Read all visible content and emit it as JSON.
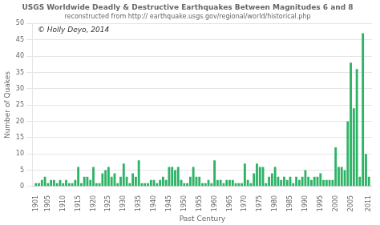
{
  "chart_data": {
    "type": "bar",
    "title": "USGS Worldwide Deadly & Destructive Earthquakes Between Magnitudes 6 and 8",
    "subtitle": "reconstructed from http:// earthquake.usgs.gov/regional/world/historical.php",
    "x_label": "Past Century",
    "y_label": "Number of Quakes",
    "annotation": "© Holly Deyo, 2014",
    "color": "#2db366",
    "xlim": [
      1900,
      2012
    ],
    "xticks": [
      1901,
      1905,
      1910,
      1915,
      1920,
      1925,
      1930,
      1935,
      1940,
      1945,
      1950,
      1955,
      1960,
      1965,
      1970,
      1975,
      1980,
      1985,
      1990,
      1995,
      2000,
      2005,
      2011
    ],
    "ylim": [
      0,
      50
    ],
    "yticks": [
      0,
      5,
      10,
      15,
      20,
      25,
      30,
      35,
      40,
      45,
      50
    ],
    "grid": true,
    "x": [
      1901,
      1902,
      1903,
      1904,
      1905,
      1906,
      1907,
      1908,
      1909,
      1910,
      1911,
      1912,
      1913,
      1914,
      1915,
      1916,
      1917,
      1918,
      1919,
      1920,
      1921,
      1922,
      1923,
      1924,
      1925,
      1926,
      1927,
      1928,
      1929,
      1930,
      1931,
      1932,
      1933,
      1934,
      1935,
      1936,
      1937,
      1938,
      1939,
      1940,
      1941,
      1942,
      1943,
      1944,
      1945,
      1946,
      1947,
      1948,
      1949,
      1950,
      1951,
      1952,
      1953,
      1954,
      1955,
      1956,
      1957,
      1958,
      1959,
      1960,
      1961,
      1962,
      1963,
      1964,
      1965,
      1966,
      1967,
      1968,
      1969,
      1970,
      1971,
      1972,
      1973,
      1974,
      1975,
      1976,
      1977,
      1978,
      1979,
      1980,
      1981,
      1982,
      1983,
      1984,
      1985,
      1986,
      1987,
      1988,
      1989,
      1990,
      1991,
      1992,
      1993,
      1994,
      1995,
      1996,
      1997,
      1998,
      1999,
      2000,
      2001,
      2002,
      2003,
      2004,
      2005,
      2006,
      2007,
      2008,
      2009,
      2010,
      2011
    ],
    "values": [
      1,
      1,
      2,
      3,
      1,
      2,
      2,
      1,
      2,
      1,
      2,
      1,
      1,
      2,
      6,
      1,
      3,
      3,
      2,
      6,
      1,
      1,
      4,
      5,
      6,
      3,
      4,
      1,
      3,
      7,
      3,
      1,
      4,
      3,
      8,
      1,
      1,
      1,
      2,
      2,
      1,
      2,
      3,
      2,
      6,
      6,
      5,
      6,
      2,
      1,
      1,
      3,
      6,
      3,
      3,
      1,
      1,
      2,
      1,
      8,
      2,
      2,
      1,
      2,
      2,
      2,
      1,
      1,
      1,
      7,
      2,
      1,
      4,
      7,
      6,
      6,
      1,
      3,
      4,
      6,
      3,
      2,
      3,
      2,
      3,
      1,
      3,
      2,
      3,
      5,
      3,
      2,
      3,
      3,
      4,
      2,
      2,
      2,
      2,
      12,
      6,
      6,
      5,
      20,
      38,
      24,
      36,
      3,
      47,
      10,
      3
    ]
  }
}
